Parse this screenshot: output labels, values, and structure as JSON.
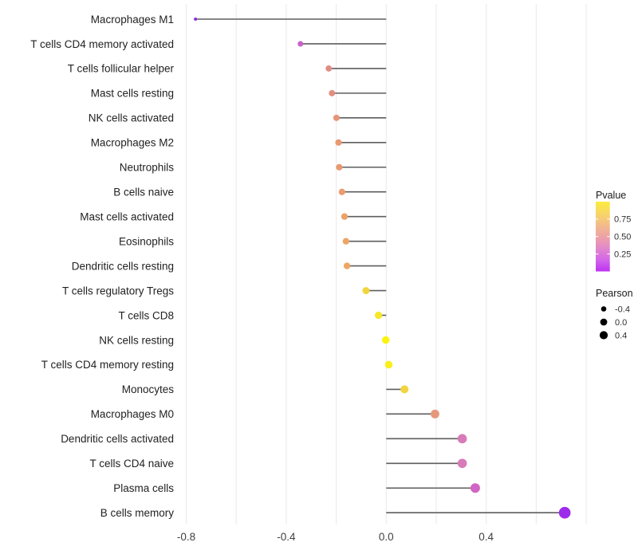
{
  "chart_data": {
    "type": "lollipop",
    "orientation": "horizontal",
    "title": "",
    "xlabel": "",
    "ylabel": "",
    "size_encoding": "Pearson",
    "color_encoding": "Pvalue",
    "x_axis": {
      "tick_labels": [
        "-0.8",
        "-0.4",
        "0.0",
        "0.4"
      ],
      "tick_values": [
        -0.8,
        -0.4,
        0.0,
        0.4
      ],
      "minor_step": 0.2,
      "xlim": [
        -0.88,
        0.82
      ],
      "grid": "vertical"
    },
    "points": [
      {
        "label": "Macrophages M1",
        "pearson": -0.763,
        "color": "#8F2BE2"
      },
      {
        "label": "T cells CD4 memory activated",
        "pearson": -0.343,
        "color": "#C763C8"
      },
      {
        "label": "T cells follicular helper",
        "pearson": -0.23,
        "color": "#E18C83"
      },
      {
        "label": "Mast cells resting",
        "pearson": -0.217,
        "color": "#E28E7F"
      },
      {
        "label": "NK cells activated",
        "pearson": -0.199,
        "color": "#E79478"
      },
      {
        "label": "Macrophages M2",
        "pearson": -0.191,
        "color": "#E99871"
      },
      {
        "label": "Neutrophils",
        "pearson": -0.188,
        "color": "#E99970"
      },
      {
        "label": "B cells naive",
        "pearson": -0.177,
        "color": "#EB9D6D"
      },
      {
        "label": "Mast cells activated",
        "pearson": -0.167,
        "color": "#ECA267"
      },
      {
        "label": "Eosinophils",
        "pearson": -0.161,
        "color": "#EDA564"
      },
      {
        "label": "Dendritic cells resting",
        "pearson": -0.157,
        "color": "#EDA762"
      },
      {
        "label": "T cells regulatory  Tregs",
        "pearson": -0.081,
        "color": "#F1D63B"
      },
      {
        "label": "T cells CD8",
        "pearson": -0.031,
        "color": "#F6E72A"
      },
      {
        "label": "NK cells resting",
        "pearson": -0.002,
        "color": "#FCF312"
      },
      {
        "label": "T cells CD4 memory resting",
        "pearson": 0.01,
        "color": "#FAEF1C"
      },
      {
        "label": "Monocytes",
        "pearson": 0.073,
        "color": "#F2D441"
      },
      {
        "label": "Macrophages M0",
        "pearson": 0.195,
        "color": "#E6987B"
      },
      {
        "label": "Dendritic cells activated",
        "pearson": 0.304,
        "color": "#D77BB9"
      },
      {
        "label": "T cells CD4 naive",
        "pearson": 0.304,
        "color": "#D77BB9"
      },
      {
        "label": "Plasma cells",
        "pearson": 0.356,
        "color": "#D165C4"
      },
      {
        "label": "B cells memory",
        "pearson": 0.714,
        "color": "#9D2BEB"
      }
    ],
    "legends": {
      "pvalue": {
        "title": "Pvalue",
        "tick_labels": [
          "0.75",
          "0.50",
          "0.25"
        ],
        "tick_values": [
          0.75,
          0.5,
          0.25
        ],
        "range": [
          0,
          1
        ],
        "gradient_top_to_bottom": [
          "#FCEB3D",
          "#F8D765",
          "#F3BB8B",
          "#EDA2A6",
          "#E288CB",
          "#D266E9",
          "#BE33F4"
        ]
      },
      "pearson": {
        "title": "Pearson",
        "items": [
          {
            "label": "-0.4",
            "value": -0.4
          },
          {
            "label": "0.0",
            "value": 0.0
          },
          {
            "label": "0.4",
            "value": 0.4
          }
        ],
        "dot_color": "#000000"
      }
    },
    "colors": {
      "stem": "#5E5E5E",
      "grid": "#EBEBEB",
      "axis_text": "#404040",
      "label_text": "#222222",
      "legend_text": "#303030",
      "background": "#FFFFFF"
    }
  }
}
